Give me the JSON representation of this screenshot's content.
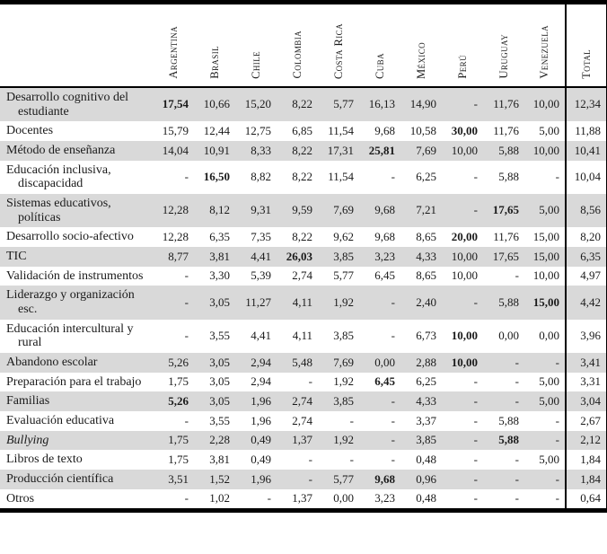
{
  "table": {
    "columns": [
      "Argentina",
      "Brasil",
      "Chile",
      "Colombia",
      "Costa Rica",
      "Cuba",
      "México",
      "Perú",
      "Uruguay",
      "Venezuela",
      "Total"
    ],
    "rows": [
      {
        "label": "Desarrollo cognitivo del estudiante",
        "italic": false,
        "values": [
          "17,54",
          "10,66",
          "15,20",
          "8,22",
          "5,77",
          "16,13",
          "14,90",
          "-",
          "11,76",
          "10,00",
          "12,34"
        ],
        "bold": [
          0
        ]
      },
      {
        "label": "Docentes",
        "italic": false,
        "values": [
          "15,79",
          "12,44",
          "12,75",
          "6,85",
          "11,54",
          "9,68",
          "10,58",
          "30,00",
          "11,76",
          "5,00",
          "11,88"
        ],
        "bold": [
          7
        ]
      },
      {
        "label": "Método de enseñanza",
        "italic": false,
        "values": [
          "14,04",
          "10,91",
          "8,33",
          "8,22",
          "17,31",
          "25,81",
          "7,69",
          "10,00",
          "5,88",
          "10,00",
          "10,41"
        ],
        "bold": [
          5
        ]
      },
      {
        "label": "Educación inclusiva, discapacidad",
        "italic": false,
        "values": [
          "-",
          "16,50",
          "8,82",
          "8,22",
          "11,54",
          "-",
          "6,25",
          "-",
          "5,88",
          "-",
          "10,04"
        ],
        "bold": [
          1
        ]
      },
      {
        "label": "Sistemas educativos, políticas",
        "italic": false,
        "values": [
          "12,28",
          "8,12",
          "9,31",
          "9,59",
          "7,69",
          "9,68",
          "7,21",
          "-",
          "17,65",
          "5,00",
          "8,56"
        ],
        "bold": [
          8
        ]
      },
      {
        "label": "Desarrollo socio-afectivo",
        "italic": false,
        "values": [
          "12,28",
          "6,35",
          "7,35",
          "8,22",
          "9,62",
          "9,68",
          "8,65",
          "20,00",
          "11,76",
          "15,00",
          "8,20"
        ],
        "bold": [
          7
        ]
      },
      {
        "label": "TIC",
        "italic": false,
        "values": [
          "8,77",
          "3,81",
          "4,41",
          "26,03",
          "3,85",
          "3,23",
          "4,33",
          "10,00",
          "17,65",
          "15,00",
          "6,35"
        ],
        "bold": [
          3
        ]
      },
      {
        "label": "Validación de instrumentos",
        "italic": false,
        "values": [
          "-",
          "3,30",
          "5,39",
          "2,74",
          "5,77",
          "6,45",
          "8,65",
          "10,00",
          "-",
          "10,00",
          "4,97"
        ],
        "bold": []
      },
      {
        "label": "Liderazgo y organización esc.",
        "italic": false,
        "values": [
          "-",
          "3,05",
          "11,27",
          "4,11",
          "1,92",
          "-",
          "2,40",
          "-",
          "5,88",
          "15,00",
          "4,42"
        ],
        "bold": [
          9
        ]
      },
      {
        "label": "Educación intercultural y rural",
        "italic": false,
        "values": [
          "-",
          "3,55",
          "4,41",
          "4,11",
          "3,85",
          "-",
          "6,73",
          "10,00",
          "0,00",
          "0,00",
          "3,96"
        ],
        "bold": [
          7
        ]
      },
      {
        "label": "Abandono escolar",
        "italic": false,
        "values": [
          "5,26",
          "3,05",
          "2,94",
          "5,48",
          "7,69",
          "0,00",
          "2,88",
          "10,00",
          "-",
          "-",
          "3,41"
        ],
        "bold": [
          7
        ]
      },
      {
        "label": "Preparación para el trabajo",
        "italic": false,
        "values": [
          "1,75",
          "3,05",
          "2,94",
          "-",
          "1,92",
          "6,45",
          "6,25",
          "-",
          "-",
          "5,00",
          "3,31"
        ],
        "bold": [
          5
        ]
      },
      {
        "label": "Familias",
        "italic": false,
        "values": [
          "5,26",
          "3,05",
          "1,96",
          "2,74",
          "3,85",
          "-",
          "4,33",
          "-",
          "-",
          "5,00",
          "3,04"
        ],
        "bold": [
          0
        ]
      },
      {
        "label": "Evaluación educativa",
        "italic": false,
        "values": [
          "-",
          "3,55",
          "1,96",
          "2,74",
          "-",
          "-",
          "3,37",
          "-",
          "5,88",
          "-",
          "2,67"
        ],
        "bold": []
      },
      {
        "label": "Bullying",
        "italic": true,
        "values": [
          "1,75",
          "2,28",
          "0,49",
          "1,37",
          "1,92",
          "-",
          "3,85",
          "-",
          "5,88",
          "-",
          "2,12"
        ],
        "bold": [
          8
        ]
      },
      {
        "label": "Libros de texto",
        "italic": false,
        "values": [
          "1,75",
          "3,81",
          "0,49",
          "-",
          "-",
          "-",
          "0,48",
          "-",
          "-",
          "5,00",
          "1,84"
        ],
        "bold": []
      },
      {
        "label": "Producción científica",
        "italic": false,
        "values": [
          "3,51",
          "1,52",
          "1,96",
          "-",
          "5,77",
          "9,68",
          "0,96",
          "-",
          "-",
          "-",
          "1,84"
        ],
        "bold": [
          5
        ]
      },
      {
        "label": "Otros",
        "italic": false,
        "values": [
          "-",
          "1,02",
          "-",
          "1,37",
          "0,00",
          "3,23",
          "0,48",
          "-",
          "-",
          "-",
          "0,64"
        ],
        "bold": []
      }
    ]
  },
  "colors": {
    "row_shade": "#d9d9d9",
    "rule": "#000000",
    "text": "#1a1a1a"
  }
}
